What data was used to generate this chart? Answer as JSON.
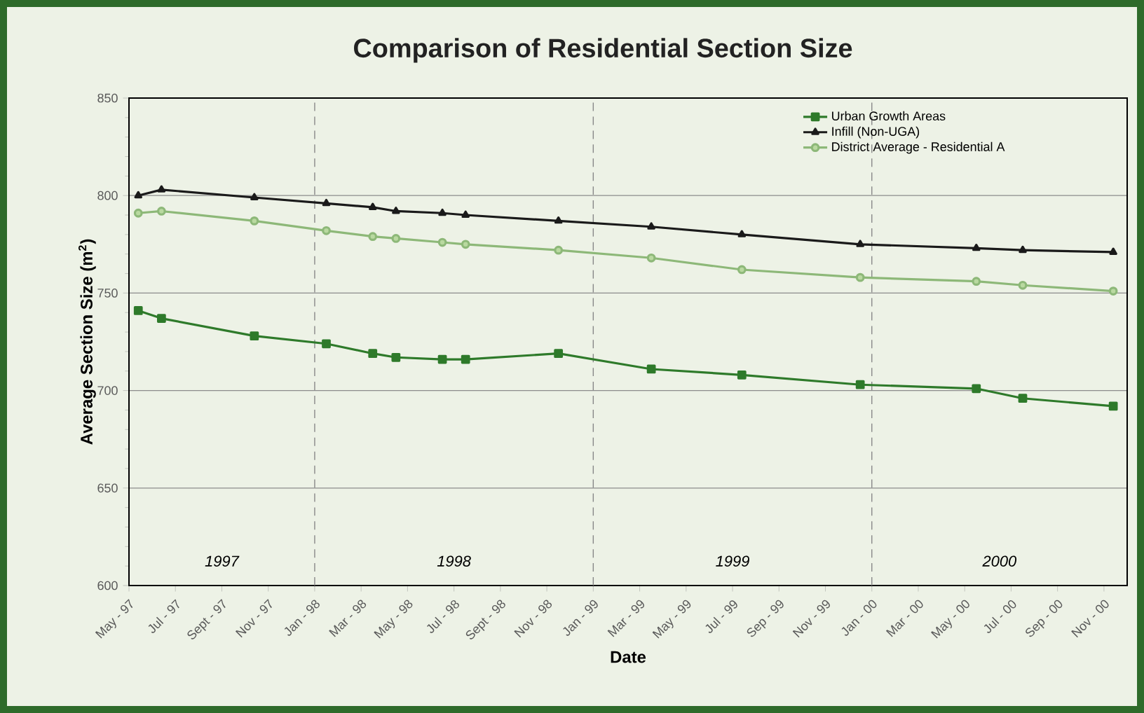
{
  "chart_data": {
    "type": "line",
    "title": "Comparison of Residential Section Size",
    "xlabel": "Date",
    "ylabel": "Average Section Size (m$^{2}$)",
    "x": [
      "1997-05-13",
      "1997-06-13",
      "1997-10-13",
      "1998-01-16",
      "1998-03-16",
      "1998-04-16",
      "1998-06-16",
      "1998-07-16",
      "1998-11-16",
      "1999-03-16",
      "1999-07-13",
      "1999-12-16",
      "2000-05-16",
      "2000-07-16",
      "2000-11-13"
    ],
    "series": [
      {
        "name": "Urban Growth Areas",
        "color": "#2e7a2a",
        "marker": "square",
        "values": [
          741,
          737,
          728,
          724,
          719,
          717,
          716,
          716,
          719,
          711,
          708,
          703,
          701,
          696,
          692
        ]
      },
      {
        "name": "Infill (Non-UGA)",
        "color": "#1a1a1a",
        "marker": "triangle",
        "values": [
          800,
          803,
          799,
          796,
          794,
          792,
          791,
          790,
          787,
          784,
          780,
          775,
          773,
          772,
          771
        ]
      },
      {
        "name": "District Average - Residential A",
        "color": "#8db878",
        "marker": "circle",
        "values": [
          791,
          792,
          787,
          782,
          779,
          778,
          776,
          775,
          772,
          768,
          762,
          758,
          756,
          754,
          751
        ]
      }
    ],
    "xlim": [
      "1997-05",
      "2000-12"
    ],
    "xticks": [
      {
        "value": "1997-05",
        "label": "May - 97"
      },
      {
        "value": "1997-07",
        "label": "Jul - 97"
      },
      {
        "value": "1997-09",
        "label": "Sept - 97"
      },
      {
        "value": "1997-11",
        "label": "Nov - 97"
      },
      {
        "value": "1998-01",
        "label": "Jan - 98"
      },
      {
        "value": "1998-03",
        "label": "Mar - 98"
      },
      {
        "value": "1998-05",
        "label": "May - 98"
      },
      {
        "value": "1998-07",
        "label": "Jul - 98"
      },
      {
        "value": "1998-09",
        "label": "Sept - 98"
      },
      {
        "value": "1998-11",
        "label": "Nov - 98"
      },
      {
        "value": "1999-01",
        "label": "Jan - 99"
      },
      {
        "value": "1999-03",
        "label": "Mar - 99"
      },
      {
        "value": "1999-05",
        "label": "May - 99"
      },
      {
        "value": "1999-07",
        "label": "Jul - 99"
      },
      {
        "value": "1999-09",
        "label": "Sep - 99"
      },
      {
        "value": "1999-11",
        "label": "Nov - 99"
      },
      {
        "value": "2000-01",
        "label": "Jan - 00"
      },
      {
        "value": "2000-03",
        "label": "Mar - 00"
      },
      {
        "value": "2000-05",
        "label": "May - 00"
      },
      {
        "value": "2000-07",
        "label": "Jul - 00"
      },
      {
        "value": "2000-09",
        "label": "Sep - 00"
      },
      {
        "value": "2000-11",
        "label": "Nov - 00"
      }
    ],
    "ylim": [
      600,
      850
    ],
    "yticks": [
      600,
      650,
      700,
      750,
      800,
      850
    ],
    "grid": "y",
    "legend": "top right",
    "line_style": "solid",
    "ref_lines": [
      {
        "axis": "x",
        "value": "1998-01",
        "line_style": "dashed",
        "color": "#888888"
      },
      {
        "axis": "x",
        "value": "1999-01",
        "line_style": "dashed",
        "color": "#888888"
      },
      {
        "axis": "x",
        "value": "2000-01",
        "line_style": "dashed",
        "color": "#888888"
      }
    ],
    "annotations": [
      "1997",
      "1998",
      "1999",
      "2000"
    ]
  }
}
